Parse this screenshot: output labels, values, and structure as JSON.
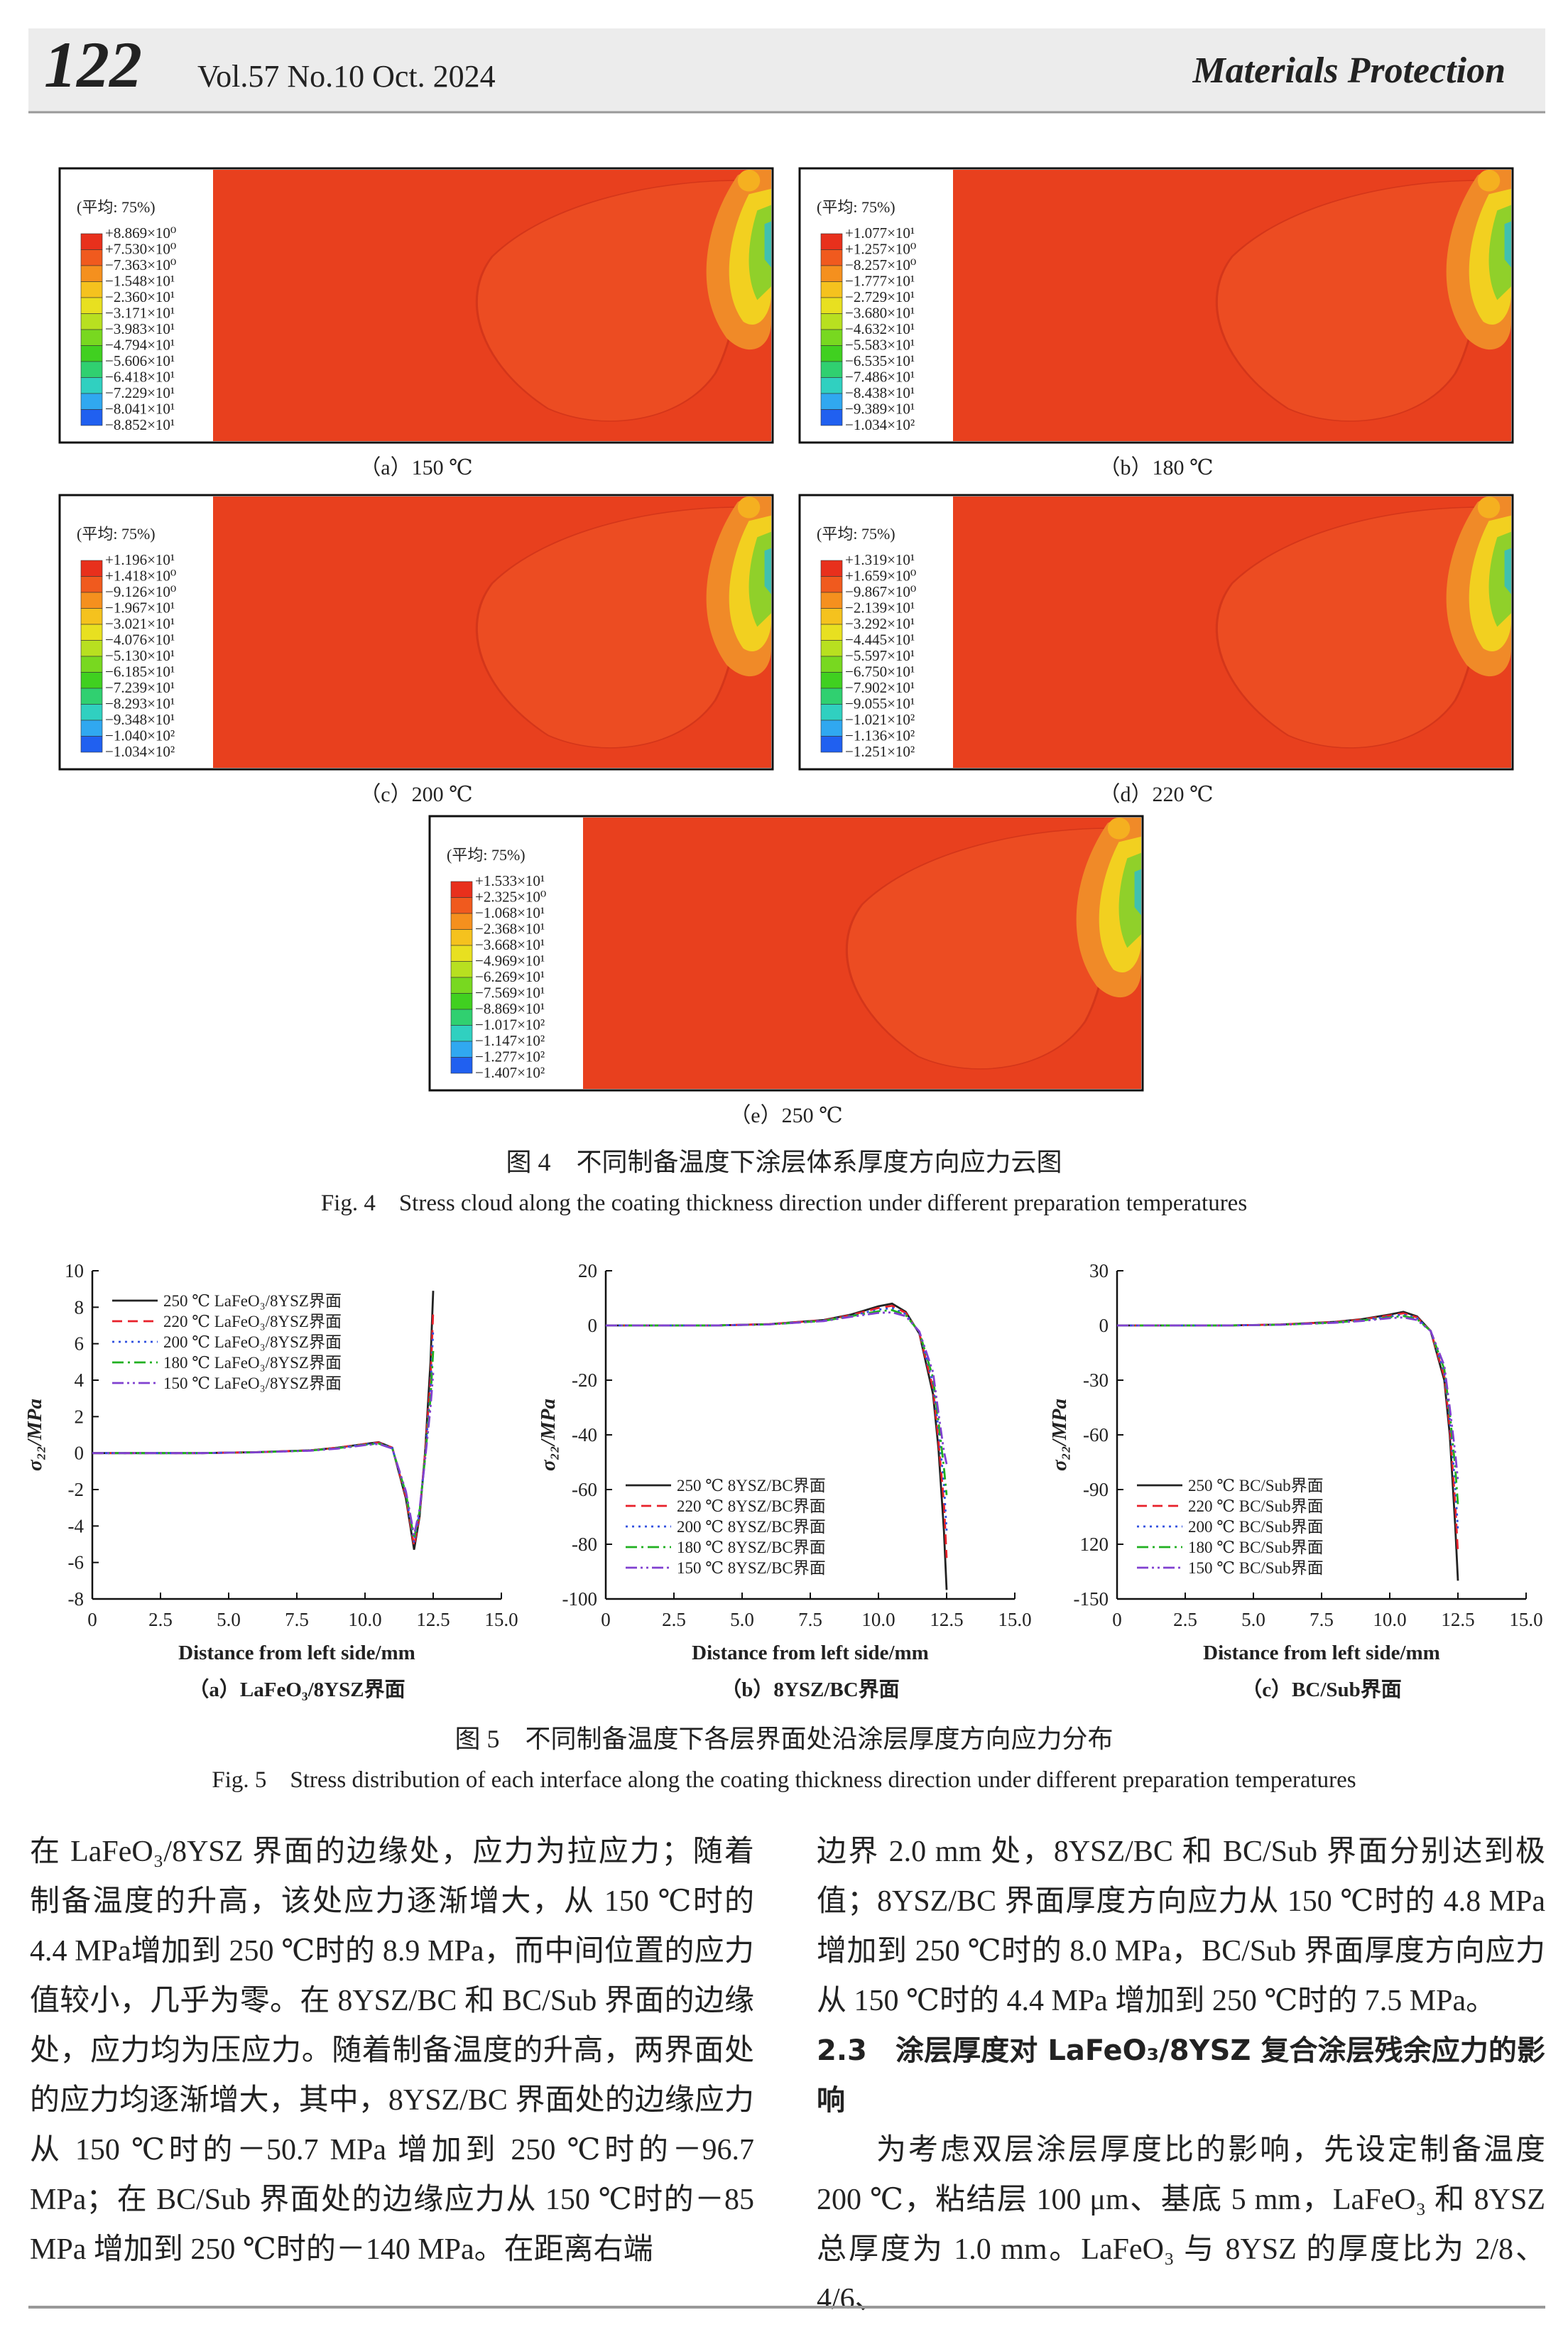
{
  "header": {
    "page": "122",
    "issue": "Vol.57 No.10 Oct. 2024",
    "journal": "Materials Protection"
  },
  "figure4": {
    "panels": [
      {
        "legend_title": "(平均: 75%)",
        "caption": "（a）150 ℃",
        "levels": [
          "+8.869×10⁰",
          "+7.530×10⁰",
          "−7.363×10⁰",
          "−1.548×10¹",
          "−2.360×10¹",
          "−3.171×10¹",
          "−3.983×10¹",
          "−4.794×10¹",
          "−5.606×10¹",
          "−6.418×10¹",
          "−7.229×10¹",
          "−8.041×10¹",
          "−8.852×10¹"
        ]
      },
      {
        "legend_title": "(平均: 75%)",
        "caption": "（b）180 ℃",
        "levels": [
          "+1.077×10¹",
          "+1.257×10⁰",
          "−8.257×10⁰",
          "−1.777×10¹",
          "−2.729×10¹",
          "−3.680×10¹",
          "−4.632×10¹",
          "−5.583×10¹",
          "−6.535×10¹",
          "−7.486×10¹",
          "−8.438×10¹",
          "−9.389×10¹",
          "−1.034×10²"
        ]
      },
      {
        "legend_title": "(平均: 75%)",
        "caption": "（c）200 ℃",
        "levels": [
          "+1.196×10¹",
          "+1.418×10⁰",
          "−9.126×10⁰",
          "−1.967×10¹",
          "−3.021×10¹",
          "−4.076×10¹",
          "−5.130×10¹",
          "−6.185×10¹",
          "−7.239×10¹",
          "−8.293×10¹",
          "−9.348×10¹",
          "−1.040×10²",
          "−1.034×10²"
        ]
      },
      {
        "legend_title": "(平均: 75%)",
        "caption": "（d）220 ℃",
        "levels": [
          "+1.319×10¹",
          "+1.659×10⁰",
          "−9.867×10⁰",
          "−2.139×10¹",
          "−3.292×10¹",
          "−4.445×10¹",
          "−5.597×10¹",
          "−6.750×10¹",
          "−7.902×10¹",
          "−9.055×10¹",
          "−1.021×10²",
          "−1.136×10²",
          "−1.251×10²"
        ]
      },
      {
        "legend_title": "(平均: 75%)",
        "caption": "（e）250 ℃",
        "levels": [
          "+1.533×10¹",
          "+2.325×10⁰",
          "−1.068×10¹",
          "−2.368×10¹",
          "−3.668×10¹",
          "−4.969×10¹",
          "−6.269×10¹",
          "−7.569×10¹",
          "−8.869×10¹",
          "−1.017×10²",
          "−1.147×10²",
          "−1.277×10²",
          "−1.407×10²"
        ]
      }
    ],
    "caption_cn": "图 4　不同制备温度下涂层体系厚度方向应力云图",
    "caption_en": "Fig. 4　Stress cloud along the coating thickness direction under different preparation temperatures"
  },
  "chart_data": [
    {
      "type": "line",
      "xlabel": "Distance from left side/mm",
      "ylabel": "σ₂₂/MPa",
      "caption": "（a）LaFeO₃/8YSZ界面",
      "x": [
        0,
        2,
        4,
        6,
        8,
        9,
        10,
        10.5,
        11,
        11.5,
        11.8,
        12,
        12.2,
        12.4,
        12.5
      ],
      "xlim": [
        0,
        15
      ],
      "xticks": [
        0,
        2.5,
        {
          "value": 5,
          "label": "5.0"
        },
        7.5,
        {
          "value": 10,
          "label": "10.0"
        },
        12.5,
        {
          "value": 15,
          "label": "15.0"
        }
      ],
      "ylim": [
        -8,
        10
      ],
      "yticks": [
        -8,
        -6,
        -4,
        -2,
        0,
        2,
        4,
        6,
        8,
        10
      ],
      "legend": "upper left",
      "series": [
        {
          "name": "250 ℃ LaFeO₃/8YSZ界面",
          "color": "#222222",
          "dash": "solid",
          "values": [
            0,
            0,
            0,
            0.05,
            0.15,
            0.3,
            0.5,
            0.6,
            0.3,
            -2.5,
            -5.3,
            -3.5,
            0,
            5,
            8.9
          ]
        },
        {
          "name": "220 ℃ LaFeO₃/8YSZ界面",
          "color": "#e8202a",
          "dash": "dashed",
          "values": [
            0,
            0,
            0,
            0.05,
            0.15,
            0.3,
            0.5,
            0.58,
            0.3,
            -2.4,
            -5.1,
            -3.4,
            0,
            4,
            7.8
          ]
        },
        {
          "name": "200 ℃ LaFeO₃/8YSZ界面",
          "color": "#3050e0",
          "dash": "dotted",
          "values": [
            0,
            0,
            0,
            0.05,
            0.15,
            0.28,
            0.48,
            0.55,
            0.28,
            -2.3,
            -4.9,
            -3.3,
            -0.2,
            3.5,
            6.8
          ]
        },
        {
          "name": "180 ℃ LaFeO₃/8YSZ界面",
          "color": "#20b020",
          "dash": "dashdot",
          "values": [
            0,
            0,
            0,
            0.04,
            0.14,
            0.27,
            0.46,
            0.52,
            0.26,
            -2.2,
            -4.7,
            -3.2,
            -0.3,
            3,
            5.6
          ]
        },
        {
          "name": "150 ℃ LaFeO₃/8YSZ界面",
          "color": "#8040d0",
          "dash": "dashdotdot",
          "values": [
            0,
            0,
            0,
            0.04,
            0.13,
            0.25,
            0.44,
            0.5,
            0.25,
            -2.1,
            -4.5,
            -3.1,
            -0.4,
            2.5,
            4.4
          ]
        }
      ]
    },
    {
      "type": "line",
      "xlabel": "Distance from left side/mm",
      "ylabel": "σ₂₂/MPa",
      "caption": "（b）8YSZ/BC界面",
      "x": [
        0,
        2,
        4,
        6,
        8,
        9,
        10,
        10.5,
        11,
        11.5,
        12,
        12.2,
        12.4,
        12.5
      ],
      "xlim": [
        0,
        15
      ],
      "xticks": [
        0,
        2.5,
        {
          "value": 5,
          "label": "5.0"
        },
        7.5,
        {
          "value": 10,
          "label": "10.0"
        },
        12.5,
        {
          "value": 15,
          "label": "15.0"
        }
      ],
      "ylim": [
        -100,
        20
      ],
      "yticks": [
        -100,
        -80,
        -60,
        -40,
        -20,
        0,
        20
      ],
      "legend": "lower left",
      "series": [
        {
          "name": "250 ℃ 8YSZ/BC界面",
          "color": "#222222",
          "dash": "solid",
          "values": [
            0,
            0,
            0,
            0.5,
            2,
            4,
            7,
            8,
            5,
            -3,
            -25,
            -45,
            -75,
            -96.7
          ]
        },
        {
          "name": "220 ℃ 8YSZ/BC界面",
          "color": "#e8202a",
          "dash": "dashed",
          "values": [
            0,
            0,
            0,
            0.5,
            1.9,
            3.8,
            6.4,
            7.2,
            4.6,
            -2.8,
            -23,
            -42,
            -65,
            -85
          ]
        },
        {
          "name": "200 ℃ 8YSZ/BC界面",
          "color": "#3050e0",
          "dash": "dotted",
          "values": [
            0,
            0,
            0,
            0.4,
            1.8,
            3.6,
            5.8,
            6.4,
            4.2,
            -2.6,
            -21,
            -38,
            -58,
            -75
          ]
        },
        {
          "name": "180 ℃ 8YSZ/BC界面",
          "color": "#20b020",
          "dash": "dashdot",
          "values": [
            0,
            0,
            0,
            0.4,
            1.7,
            3.4,
            5.2,
            5.6,
            3.8,
            -2.4,
            -19,
            -35,
            -52,
            -62
          ]
        },
        {
          "name": "150 ℃ 8YSZ/BC界面",
          "color": "#8040d0",
          "dash": "dashdotdot",
          "values": [
            0,
            0,
            0,
            0.4,
            1.6,
            3.2,
            4.6,
            4.8,
            3.4,
            -2.2,
            -17,
            -32,
            -46,
            -50.7
          ]
        }
      ]
    },
    {
      "type": "line",
      "xlabel": "Distance from left side/mm",
      "ylabel": "σ₂₂/MPa",
      "caption": "（c）BC/Sub界面",
      "x": [
        0,
        2,
        4,
        6,
        8,
        9,
        10,
        10.5,
        11,
        11.5,
        12,
        12.2,
        12.4,
        12.5
      ],
      "xlim": [
        0,
        15
      ],
      "xticks": [
        0,
        2.5,
        {
          "value": 5,
          "label": "5.0"
        },
        7.5,
        {
          "value": 10,
          "label": "10.0"
        },
        12.5,
        {
          "value": 15,
          "label": "15.0"
        }
      ],
      "ylim": [
        -150,
        30
      ],
      "yticks": [
        -150,
        {
          "value": -120,
          "label": "120"
        },
        -90,
        -60,
        -30,
        0,
        30
      ],
      "legend": "lower left",
      "series": [
        {
          "name": "250 ℃ BC/Sub界面",
          "color": "#222222",
          "dash": "solid",
          "values": [
            0,
            0,
            0,
            0.5,
            2,
            3.5,
            6,
            7.5,
            5,
            -3,
            -30,
            -60,
            -110,
            -140
          ]
        },
        {
          "name": "220 ℃ BC/Sub界面",
          "color": "#e8202a",
          "dash": "dashed",
          "values": [
            0,
            0,
            0,
            0.5,
            1.9,
            3.3,
            5.5,
            6.7,
            4.5,
            -3,
            -28,
            -56,
            -98,
            -125
          ]
        },
        {
          "name": "200 ℃ BC/Sub界面",
          "color": "#3050e0",
          "dash": "dotted",
          "values": [
            0,
            0,
            0,
            0.4,
            1.7,
            3,
            5,
            6,
            4,
            -3,
            -26,
            -52,
            -88,
            -112
          ]
        },
        {
          "name": "180 ℃ BC/Sub界面",
          "color": "#20b020",
          "dash": "dashdot",
          "values": [
            0,
            0,
            0,
            0.4,
            1.6,
            2.8,
            4.5,
            5.2,
            3.5,
            -3,
            -24,
            -48,
            -78,
            -98
          ]
        },
        {
          "name": "150 ℃ BC/Sub界面",
          "color": "#8040d0",
          "dash": "dashdotdot",
          "values": [
            0,
            0,
            0,
            0.4,
            1.5,
            2.5,
            4,
            4.4,
            3,
            -3,
            -22,
            -45,
            -70,
            -85
          ]
        }
      ]
    }
  ],
  "figure5": {
    "caption_cn": "图 5　不同制备温度下各层界面处沿涂层厚度方向应力分布",
    "caption_en": "Fig. 5　Stress distribution of each interface along the coating thickness direction under different preparation temperatures"
  },
  "body": {
    "left": "在 LaFeO₃/8YSZ 界面的边缘处，应力为拉应力；随着制备温度的升高，该处应力逐渐增大，从 150 ℃时的 4.4 MPa增加到 250 ℃时的 8.9 MPa，而中间位置的应力值较小，几乎为零。在 8YSZ/BC 和 BC/Sub 界面的边缘处，应力均为压应力。随着制备温度的升高，两界面处的应力均逐渐增大，其中，8YSZ/BC 界面处的边缘应力从 150 ℃时的－50.7 MPa 增加到 250 ℃时的－96.7 MPa；在 BC/Sub 界面处的边缘应力从 150 ℃时的－85 MPa 增加到 250 ℃时的－140 MPa。在距离右端",
    "right": "边界 2.0 mm 处，8YSZ/BC 和 BC/Sub 界面分别达到极值；8YSZ/BC 界面厚度方向应力从 150 ℃时的 4.8 MPa 增加到 250 ℃时的 8.0 MPa，BC/Sub 界面厚度方向应力从 150 ℃时的 4.4 MPa 增加到 250 ℃时的 7.5 MPa。",
    "heading": "2.3　涂层厚度对 LaFeO₃/8YSZ 复合涂层残余应力的影响",
    "paragraph": "为考虑双层涂层厚度比的影响，先设定制备温度 200 ℃，粘结层 100 μm、基底 5 mm，LaFeO₃ 和 8YSZ 总厚度为 1.0 mm。LaFeO₃ 与 8YSZ 的厚度比为 2/8、4/6、"
  }
}
